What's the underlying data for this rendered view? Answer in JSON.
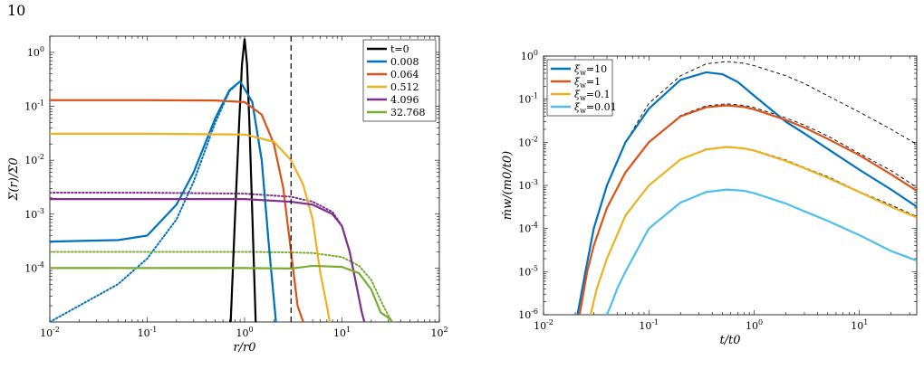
{
  "page_number": "10",
  "colors": {
    "black": "#000000",
    "blue": "#0072BD",
    "orange": "#D95319",
    "yellow": "#EDB120",
    "purple": "#7E2F8E",
    "green": "#77AC30",
    "cyan": "#4DBEEE"
  },
  "chart_data": [
    {
      "type": "line",
      "xlabel": "r/r0",
      "ylabel": "Σ(r)/Σ0",
      "x_scale": "log",
      "y_scale": "log",
      "xlim": [
        0.01,
        100
      ],
      "ylim": [
        1e-05,
        2
      ],
      "x_ticks": [
        {
          "v": 0.01,
          "b": "10",
          "e": "-2"
        },
        {
          "v": 0.1,
          "b": "10",
          "e": "-1"
        },
        {
          "v": 1,
          "b": "10",
          "e": "0"
        },
        {
          "v": 10,
          "b": "10",
          "e": "1"
        },
        {
          "v": 100,
          "b": "10",
          "e": "2"
        }
      ],
      "y_ticks": [
        {
          "v": 0.0001,
          "b": "10",
          "e": "-4"
        },
        {
          "v": 0.001,
          "b": "10",
          "e": "-3"
        },
        {
          "v": 0.01,
          "b": "10",
          "e": "-2"
        },
        {
          "v": 0.1,
          "b": "10",
          "e": "-1"
        },
        {
          "v": 1,
          "b": "10",
          "e": "0"
        }
      ],
      "legend_placement": "top-right",
      "vertical_line_x": 3,
      "series": [
        {
          "name": "t=0",
          "color": "#000000",
          "x": [
            0.72,
            0.8,
            0.88,
            0.94,
            1.0,
            1.06,
            1.12,
            1.2,
            1.3
          ],
          "y": [
            1e-05,
            0.001,
            0.05,
            0.6,
            1.8,
            0.6,
            0.05,
            0.001,
            1e-05
          ]
        },
        {
          "name": "0.008",
          "color": "#0072BD",
          "x": [
            0.01,
            0.05,
            0.1,
            0.2,
            0.3,
            0.5,
            0.7,
            0.9,
            1.2,
            1.5,
            1.8,
            2.1
          ],
          "y": [
            0.00031,
            0.00033,
            0.0004,
            0.0015,
            0.006,
            0.06,
            0.2,
            0.29,
            0.12,
            0.01,
            0.0002,
            1e-05
          ]
        },
        {
          "name": "0.064",
          "color": "#D95319",
          "x": [
            0.01,
            0.1,
            0.5,
            1.0,
            1.5,
            2.0,
            2.5,
            3.0,
            3.5,
            4.0
          ],
          "y": [
            0.13,
            0.13,
            0.128,
            0.12,
            0.07,
            0.02,
            0.003,
            0.0002,
            2e-05,
            1e-05
          ]
        },
        {
          "name": "0.512",
          "color": "#EDB120",
          "x": [
            0.01,
            0.1,
            1.0,
            2.0,
            3.0,
            4.0,
            5.0,
            6.0,
            7.0,
            7.5
          ],
          "y": [
            0.031,
            0.031,
            0.03,
            0.022,
            0.01,
            0.0035,
            0.0008,
            8e-05,
            2e-05,
            1e-05
          ]
        },
        {
          "name": "4.096",
          "color": "#7E2F8E",
          "x": [
            0.01,
            0.1,
            1.0,
            3.0,
            5.0,
            8.0,
            10.0,
            12.0,
            14.0,
            16.0,
            17.0
          ],
          "y": [
            0.0019,
            0.0019,
            0.0019,
            0.0017,
            0.0015,
            0.001,
            0.0006,
            0.0002,
            5e-05,
            1.5e-05,
            1e-05
          ]
        },
        {
          "name": "32.768",
          "color": "#77AC30",
          "x": [
            0.01,
            0.1,
            1.0,
            3.0,
            5.0,
            10.0,
            15.0,
            20.0,
            25.0,
            30.0,
            33.0
          ],
          "y": [
            0.0001,
            0.0001,
            0.0001,
            9.8e-05,
            0.00011,
            0.000105,
            8e-05,
            4e-05,
            1.5e-05,
            1.2e-05,
            1e-05
          ]
        }
      ],
      "dotted_series": [
        {
          "color": "#0072BD",
          "x": [
            0.01,
            0.05,
            0.1,
            0.2,
            0.3,
            0.5,
            0.7,
            0.9,
            1.2,
            1.5,
            1.8,
            2.1
          ],
          "y": [
            1e-05,
            5e-05,
            0.00015,
            0.0008,
            0.004,
            0.05,
            0.19,
            0.29,
            0.12,
            0.01,
            0.0002,
            1e-05
          ]
        },
        {
          "color": "#7E2F8E",
          "x": [
            0.01,
            0.1,
            1.0,
            3.0,
            5.0,
            8.0,
            10.0,
            12.0,
            14.0,
            16.0,
            17.0
          ],
          "y": [
            0.0025,
            0.0025,
            0.0024,
            0.0021,
            0.0017,
            0.0011,
            0.0006,
            0.0002,
            5e-05,
            1.5e-05,
            1e-05
          ]
        },
        {
          "color": "#77AC30",
          "x": [
            0.01,
            0.1,
            1.0,
            3.0,
            5.0,
            10.0,
            15.0,
            20.0,
            25.0,
            30.0,
            33.0
          ],
          "y": [
            0.0002,
            0.0002,
            0.0002,
            0.000195,
            0.00019,
            0.00016,
            0.00011,
            6e-05,
            2.5e-05,
            1.3e-05,
            1e-05
          ]
        }
      ]
    },
    {
      "type": "line",
      "xlabel": "t/t0",
      "ylabel": "ṁw/(m0/t0)",
      "x_scale": "log",
      "y_scale": "log",
      "xlim": [
        0.01,
        35
      ],
      "ylim": [
        1e-06,
        1
      ],
      "x_ticks": [
        {
          "v": 0.01,
          "b": "10",
          "e": "-2"
        },
        {
          "v": 0.1,
          "b": "10",
          "e": "-1"
        },
        {
          "v": 1,
          "b": "10",
          "e": "0"
        },
        {
          "v": 10,
          "b": "10",
          "e": "1"
        }
      ],
      "y_ticks": [
        {
          "v": 1e-06,
          "b": "10",
          "e": "-6"
        },
        {
          "v": 1e-05,
          "b": "10",
          "e": "-5"
        },
        {
          "v": 0.0001,
          "b": "10",
          "e": "-4"
        },
        {
          "v": 0.001,
          "b": "10",
          "e": "-3"
        },
        {
          "v": 0.01,
          "b": "10",
          "e": "-2"
        },
        {
          "v": 0.1,
          "b": "10",
          "e": "-1"
        },
        {
          "v": 1,
          "b": "10",
          "e": "0"
        }
      ],
      "legend_placement": "top-left",
      "series": [
        {
          "name": "ξw=10",
          "symbol": "ξ",
          "sub": "w",
          "val": "=10",
          "color": "#0072BD",
          "x": [
            0.021,
            0.025,
            0.03,
            0.04,
            0.06,
            0.1,
            0.2,
            0.35,
            0.5,
            0.7,
            1.0,
            2.0,
            3.0,
            5.0,
            10.0,
            20.0,
            35.0
          ],
          "y": [
            1e-06,
            1e-05,
            0.0001,
            0.001,
            0.01,
            0.06,
            0.28,
            0.42,
            0.38,
            0.25,
            0.12,
            0.03,
            0.016,
            0.007,
            0.0023,
            0.0008,
            0.00032
          ]
        },
        {
          "name": "ξw=1",
          "symbol": "ξ",
          "sub": "w",
          "val": "=1",
          "color": "#D95319",
          "x": [
            0.022,
            0.026,
            0.03,
            0.04,
            0.06,
            0.1,
            0.2,
            0.35,
            0.55,
            0.8,
            1.0,
            2.0,
            3.0,
            5.0,
            10.0,
            20.0,
            35.0
          ],
          "y": [
            1e-06,
            1e-05,
            4e-05,
            0.0003,
            0.002,
            0.01,
            0.04,
            0.065,
            0.072,
            0.066,
            0.058,
            0.033,
            0.022,
            0.012,
            0.005,
            0.0018,
            0.00075
          ]
        },
        {
          "name": "ξw=0.1",
          "symbol": "ξ",
          "sub": "w",
          "val": "=0.1",
          "color": "#EDB120",
          "x": [
            0.028,
            0.032,
            0.04,
            0.06,
            0.1,
            0.2,
            0.35,
            0.55,
            0.8,
            1.0,
            2.0,
            3.0,
            5.0,
            10.0,
            20.0,
            35.0
          ],
          "y": [
            1e-06,
            4e-06,
            2e-05,
            0.0002,
            0.001,
            0.004,
            0.0068,
            0.0078,
            0.0072,
            0.0064,
            0.0037,
            0.0025,
            0.0015,
            0.0007,
            0.00032,
            0.00018
          ]
        },
        {
          "name": "ξw=0.01",
          "symbol": "ξ",
          "sub": "w",
          "val": "=0.01",
          "color": "#4DBEEE",
          "x": [
            0.04,
            0.045,
            0.05,
            0.06,
            0.1,
            0.2,
            0.35,
            0.55,
            0.8,
            1.0,
            2.0,
            3.0,
            5.0,
            10.0,
            20.0,
            35.0
          ],
          "y": [
            1e-06,
            2e-06,
            4e-06,
            1e-05,
            0.0001,
            0.0004,
            0.0007,
            0.0008,
            0.00075,
            0.00066,
            0.00038,
            0.00025,
            0.00015,
            7e-05,
            3e-05,
            1.8e-05
          ]
        }
      ],
      "dashed_series": [
        {
          "color": "#000000",
          "x": [
            0.021,
            0.025,
            0.03,
            0.04,
            0.06,
            0.1,
            0.2,
            0.35,
            0.55,
            0.8,
            1.0,
            2.0,
            3.0,
            5.0,
            10.0,
            20.0,
            35.0
          ],
          "y": [
            1e-06,
            1e-05,
            0.0001,
            0.001,
            0.01,
            0.08,
            0.35,
            0.66,
            0.75,
            0.68,
            0.6,
            0.35,
            0.23,
            0.12,
            0.05,
            0.02,
            0.009
          ]
        },
        {
          "color": "#000000",
          "x": [
            0.022,
            0.026,
            0.03,
            0.04,
            0.06,
            0.1,
            0.2,
            0.35,
            0.55,
            0.8,
            1.0,
            2.0,
            3.0,
            5.0,
            10.0,
            20.0,
            35.0
          ],
          "y": [
            1e-06,
            1e-05,
            4e-05,
            0.0003,
            0.002,
            0.01,
            0.042,
            0.07,
            0.078,
            0.072,
            0.064,
            0.037,
            0.025,
            0.014,
            0.0055,
            0.0022,
            0.0009
          ]
        },
        {
          "color": "#000000",
          "x": [
            0.028,
            0.032,
            0.04,
            0.06,
            0.1,
            0.2,
            0.35,
            0.55,
            0.8,
            1.0,
            2.0,
            3.0,
            5.0,
            10.0,
            20.0,
            35.0
          ],
          "y": [
            1e-06,
            4e-06,
            2e-05,
            0.0002,
            0.001,
            0.004,
            0.007,
            0.008,
            0.0074,
            0.0066,
            0.0039,
            0.0026,
            0.0016,
            0.00072,
            0.00035,
            0.00019
          ]
        },
        {
          "color": "#000000",
          "x": [
            0.04,
            0.045,
            0.05,
            0.06,
            0.1,
            0.2,
            0.35,
            0.55,
            0.8,
            1.0,
            2.0,
            3.0,
            5.0,
            10.0,
            20.0,
            35.0
          ],
          "y": [
            1e-06,
            2e-06,
            4e-06,
            1e-05,
            0.0001,
            0.0004,
            0.0007,
            0.0008,
            0.00075,
            0.00066,
            0.00038,
            0.00025,
            0.00015,
            7e-05,
            3e-05,
            1.8e-05
          ]
        }
      ]
    }
  ]
}
